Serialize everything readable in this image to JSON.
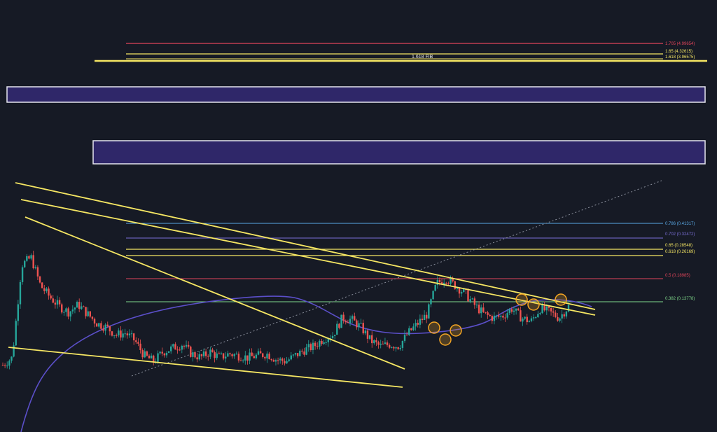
{
  "chart_data": {
    "type": "candlestick",
    "title": "",
    "background": "#161a25",
    "colors": {
      "up": "#26a69a",
      "down": "#ef5350",
      "trendline": "#f5e663",
      "moving_average": "#5b4fc9",
      "zone_fill": "#2f2769",
      "zone_border": "#e6e6f0",
      "touch_marker": "#f5a623"
    },
    "grid": false,
    "upper_fib_levels": [
      {
        "label": "1.705 (4.99654)",
        "color": "#e0445a"
      },
      {
        "label": "1.65 (4.32615)",
        "color": "#f5e663"
      },
      {
        "label": "1.618 (3.96575)",
        "color": "#f5e663"
      }
    ],
    "upper_fib_caption": "1.618 FIB",
    "fib_levels": [
      {
        "label": "0.786 (0.41317)",
        "color": "#5aa9e6"
      },
      {
        "label": "0.702 (0.32472)",
        "color": "#7a6fd6"
      },
      {
        "label": "0.65 (0.28548)",
        "color": "#f5e663"
      },
      {
        "label": "0.618 (0.26169)",
        "color": "#f5e663"
      },
      {
        "label": "0.5 (0.18985)",
        "color": "#e0445a"
      },
      {
        "label": "0.382 (0.13778)",
        "color": "#7fd88a"
      }
    ],
    "resistance_zones": 2,
    "touch_markers": 8,
    "trendlines": 5,
    "close_path": [
      0.05,
      0.09,
      0.58,
      0.62,
      0.47,
      0.41,
      0.36,
      0.33,
      0.37,
      0.32,
      0.27,
      0.25,
      0.21,
      0.22,
      0.18,
      0.1,
      0.07,
      0.12,
      0.14,
      0.16,
      0.11,
      0.09,
      0.12,
      0.09,
      0.11,
      0.1,
      0.09,
      0.1,
      0.11,
      0.08,
      0.07,
      0.1,
      0.13,
      0.15,
      0.19,
      0.21,
      0.3,
      0.29,
      0.25,
      0.18,
      0.15,
      0.16,
      0.15,
      0.22,
      0.27,
      0.32,
      0.48,
      0.51,
      0.47,
      0.43,
      0.37,
      0.32,
      0.3,
      0.31,
      0.35,
      0.3,
      0.28,
      0.35,
      0.33,
      0.3,
      0.36
    ]
  }
}
